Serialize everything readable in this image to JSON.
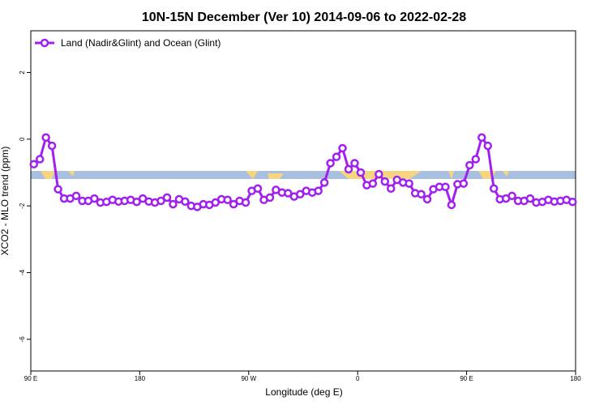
{
  "chart_data": {
    "type": "line",
    "title": "10N-15N December (Ver 10)   2014-09-06 to 2022-02-28",
    "xlabel": "Longitude (deg E)",
    "ylabel": "XCO2 - MLO trend (ppm)",
    "x": [
      92.5,
      97.5,
      102.5,
      107.5,
      112.5,
      117.5,
      122.5,
      127.5,
      132.5,
      137.5,
      142.5,
      147.5,
      152.5,
      157.5,
      162.5,
      167.5,
      172.5,
      177.5,
      182.5,
      187.5,
      192.5,
      197.5,
      202.5,
      207.5,
      212.5,
      217.5,
      222.5,
      227.5,
      232.5,
      237.5,
      242.5,
      247.5,
      252.5,
      257.5,
      262.5,
      267.5,
      272.5,
      277.5,
      282.5,
      287.5,
      292.5,
      297.5,
      302.5,
      307.5,
      312.5,
      317.5,
      322.5,
      327.5,
      332.5,
      337.5,
      342.5,
      347.5,
      352.5,
      357.5,
      362.5,
      367.5,
      372.5,
      377.5,
      382.5,
      387.5,
      392.5,
      397.5,
      402.5,
      407.5,
      412.5,
      417.5,
      422.5,
      427.5,
      432.5,
      437.5,
      442.5,
      447.5,
      452.5,
      457.5,
      462.5,
      467.5,
      472.5,
      477.5,
      482.5,
      487.5,
      492.5,
      497.5,
      502.5,
      507.5,
      512.5,
      517.5,
      522.5,
      527.5,
      532.5,
      537.5
    ],
    "series": [
      {
        "name": "Land (Nadir&Glint) and Ocean (Glint)",
        "color": "#a020f0",
        "values": [
          -0.75,
          -0.6,
          0.05,
          -0.2,
          -1.5,
          -1.78,
          -1.78,
          -1.7,
          -1.85,
          -1.85,
          -1.78,
          -1.9,
          -1.88,
          -1.82,
          -1.87,
          -1.85,
          -1.82,
          -1.88,
          -1.78,
          -1.87,
          -1.9,
          -1.85,
          -1.75,
          -1.95,
          -1.8,
          -1.87,
          -2.0,
          -2.03,
          -1.95,
          -1.97,
          -1.9,
          -1.8,
          -1.82,
          -1.95,
          -1.85,
          -1.9,
          -1.55,
          -1.48,
          -1.82,
          -1.75,
          -1.52,
          -1.6,
          -1.62,
          -1.72,
          -1.65,
          -1.55,
          -1.6,
          -1.55,
          -1.3,
          -0.72,
          -0.53,
          -0.27,
          -0.9,
          -0.72,
          -1.0,
          -1.38,
          -1.33,
          -1.05,
          -1.27,
          -1.48,
          -1.22,
          -1.3,
          -1.33,
          -1.62,
          -1.65,
          -1.8,
          -1.5,
          -1.43,
          -1.43,
          -1.97,
          -1.35,
          -1.33,
          -0.78,
          -0.6,
          0.05,
          -0.2,
          -1.48,
          -1.8,
          -1.78,
          -1.7,
          -1.85,
          -1.85,
          -1.78,
          -1.9,
          -1.88,
          -1.82,
          -1.87,
          -1.85,
          -1.82,
          -1.88
        ]
      }
    ],
    "xlim": [
      90,
      540
    ],
    "xticks": [
      {
        "value": 90,
        "label": "90 E"
      },
      {
        "value": 180,
        "label": "180"
      },
      {
        "value": 270,
        "label": "90 W"
      },
      {
        "value": 360,
        "label": "0"
      },
      {
        "value": 450,
        "label": "90 E"
      },
      {
        "value": 540,
        "label": "180"
      }
    ],
    "ylim": [
      -6.95,
      3.25
    ],
    "yticks": [
      -6,
      -4,
      -2,
      0,
      2
    ],
    "legend": "top-left"
  }
}
